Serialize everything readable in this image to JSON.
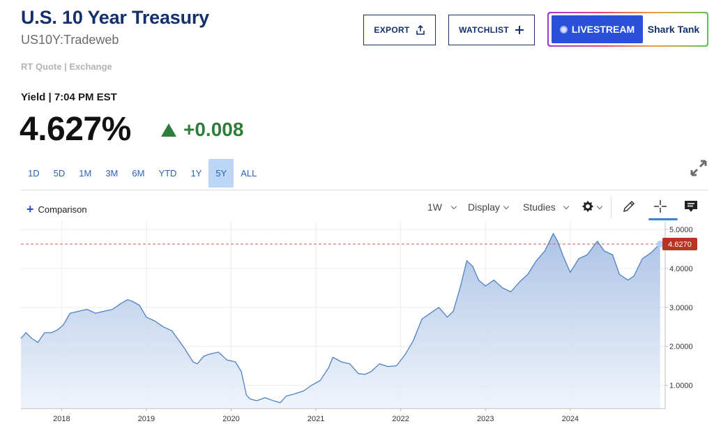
{
  "header": {
    "title": "U.S. 10 Year Treasury",
    "symbol": "US10Y:Tradeweb",
    "quote_source": "RT Quote | Exchange"
  },
  "actions": {
    "export_label": "EXPORT",
    "watchlist_label": "WATCHLIST",
    "livestream_label": "LIVESTREAM",
    "show_label": "Shark Tank"
  },
  "quote": {
    "yield_label": "Yield | 7:04 PM EST",
    "price": "4.627%",
    "change": "+0.008",
    "change_color": "#2e7d3b"
  },
  "ranges": [
    "1D",
    "5D",
    "1M",
    "3M",
    "6M",
    "YTD",
    "1Y",
    "5Y",
    "ALL"
  ],
  "active_range": "5Y",
  "toolbar": {
    "comparison_label": "Comparison",
    "interval_label": "1W",
    "display_label": "Display",
    "studies_label": "Studies",
    "icons": [
      "gear-icon",
      "pencil-icon",
      "crosshair-icon",
      "comment-icon",
      "expand-icon"
    ]
  },
  "colors": {
    "brand": "#14306b",
    "accent": "#2a4fd8",
    "line": "#4f80c4",
    "current_marker": "#b93323",
    "positive": "#2e7d3b"
  },
  "chart_data": {
    "type": "area",
    "title": "",
    "xlabel": "",
    "ylabel": "",
    "x_ticks": [
      "2018",
      "2019",
      "2020",
      "2021",
      "2022",
      "2023",
      "2024"
    ],
    "y_ticks": [
      "1.0000",
      "2.0000",
      "3.0000",
      "4.0000",
      "5.0000"
    ],
    "ylim": [
      0.4,
      5.2
    ],
    "xlim": [
      2017.52,
      2025.12
    ],
    "current_value_label": "4.6270",
    "current_value": 4.627,
    "grid": true,
    "series": [
      {
        "x": [
          2017.52,
          2017.58,
          2017.65,
          2017.72,
          2017.8,
          2017.88,
          2017.95,
          2018.02,
          2018.1,
          2018.2,
          2018.3,
          2018.4,
          2018.5,
          2018.6,
          2018.7,
          2018.78,
          2018.84,
          2018.92,
          2019.0,
          2019.1,
          2019.2,
          2019.3,
          2019.4,
          2019.45,
          2019.55,
          2019.6,
          2019.68,
          2019.75,
          2019.85,
          2019.95,
          2020.05,
          2020.12,
          2020.18,
          2020.22,
          2020.3,
          2020.4,
          2020.5,
          2020.58,
          2020.65,
          2020.75,
          2020.85,
          2020.95,
          2021.05,
          2021.15,
          2021.2,
          2021.3,
          2021.4,
          2021.5,
          2021.58,
          2021.65,
          2021.75,
          2021.85,
          2021.95,
          2022.05,
          2022.15,
          2022.25,
          2022.35,
          2022.45,
          2022.55,
          2022.62,
          2022.7,
          2022.78,
          2022.85,
          2022.92,
          2023.0,
          2023.1,
          2023.2,
          2023.3,
          2023.4,
          2023.5,
          2023.6,
          2023.7,
          2023.8,
          2023.85,
          2023.92,
          2024.0,
          2024.1,
          2024.2,
          2024.32,
          2024.4,
          2024.5,
          2024.58,
          2024.68,
          2024.75,
          2024.85,
          2024.95,
          2025.02,
          2025.06
        ],
        "values": [
          2.2,
          2.35,
          2.2,
          2.1,
          2.35,
          2.35,
          2.42,
          2.55,
          2.85,
          2.9,
          2.95,
          2.85,
          2.9,
          2.95,
          3.1,
          3.2,
          3.15,
          3.05,
          2.75,
          2.65,
          2.5,
          2.4,
          2.1,
          1.95,
          1.6,
          1.55,
          1.75,
          1.8,
          1.85,
          1.65,
          1.6,
          1.35,
          0.75,
          0.65,
          0.6,
          0.68,
          0.6,
          0.55,
          0.72,
          0.78,
          0.85,
          1.0,
          1.12,
          1.45,
          1.72,
          1.6,
          1.55,
          1.3,
          1.28,
          1.35,
          1.55,
          1.48,
          1.5,
          1.78,
          2.15,
          2.7,
          2.85,
          3.0,
          2.75,
          2.9,
          3.5,
          4.2,
          4.05,
          3.7,
          3.55,
          3.7,
          3.5,
          3.4,
          3.65,
          3.85,
          4.2,
          4.45,
          4.9,
          4.7,
          4.3,
          3.9,
          4.25,
          4.35,
          4.7,
          4.45,
          4.35,
          3.85,
          3.7,
          3.8,
          4.25,
          4.4,
          4.55,
          4.627
        ]
      }
    ]
  }
}
